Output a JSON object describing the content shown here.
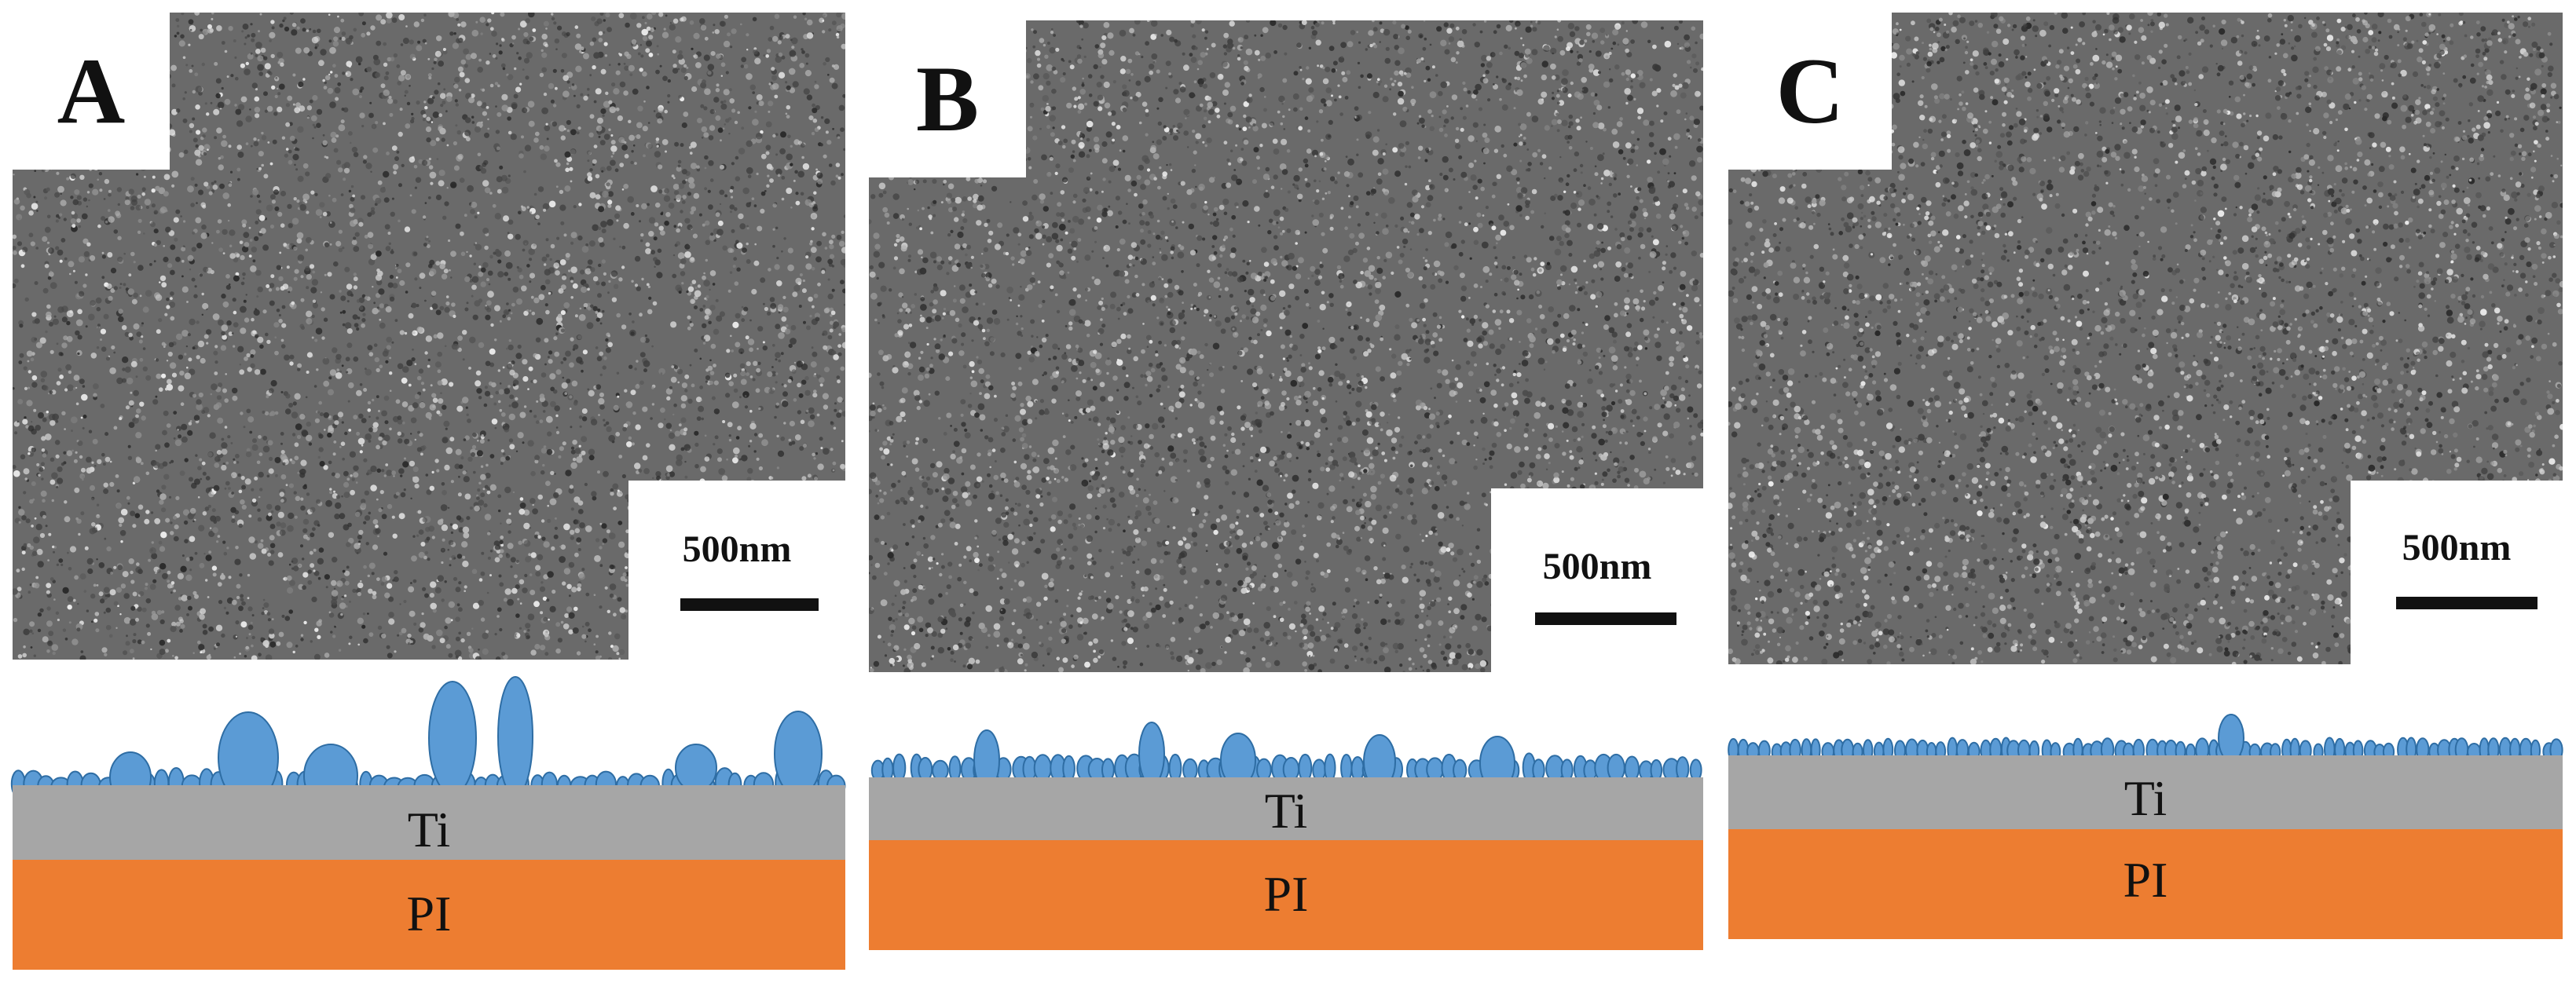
{
  "panels": [
    {
      "id": "a",
      "letter": "A",
      "scale_label": "500nm",
      "ti_label": "Ti",
      "pi_label": "PI"
    },
    {
      "id": "b",
      "letter": "B",
      "scale_label": "500nm",
      "ti_label": "Ti",
      "pi_label": "PI"
    },
    {
      "id": "c",
      "letter": "C",
      "scale_label": "500nm",
      "ti_label": "Ti",
      "pi_label": "PI"
    }
  ],
  "colors": {
    "sem_background": "#6a6a6a",
    "grain_fill": "#5b9bd5",
    "grain_stroke": "#2e6da4",
    "ti_layer": "#a6a6a6",
    "pi_layer": "#ed7d31"
  }
}
